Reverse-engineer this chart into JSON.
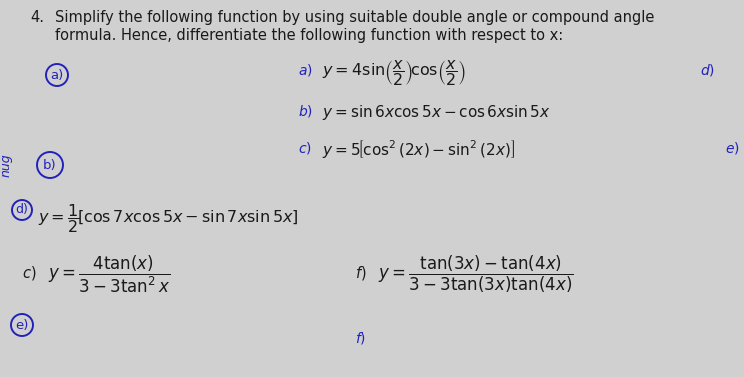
{
  "bg_color": "#d0d0d0",
  "text_color": "#1a1a1a",
  "blue_color": "#2222bb",
  "circle_color": "#2222bb",
  "title_number": "4.",
  "title_line1": "Simplify the following function by using suitable double angle or compound angle",
  "title_line2": "formula. Hence, differentiate the following function with respect to x:",
  "side_text": "nug",
  "eq_a": "$y = 4\\sin\\!\\left(\\dfrac{x}{2}\\right)\\!\\cos\\!\\left(\\dfrac{x}{2}\\right)$",
  "eq_b": "$y = \\sin 6x\\cos 5x - \\cos 6x\\sin 5x$",
  "eq_c": "$y = 5\\!\\left[\\cos^2(2x) - \\sin^2(2x)\\right]$",
  "eq_d": "$y = \\dfrac{1}{2}\\!\\left[\\cos 7x\\cos 5x - \\sin 7x\\sin 5x\\right]$",
  "eq_e_num": "$4\\tan(x)$",
  "eq_e_den": "$3 - 3\\tan^2 x$",
  "eq_f_num": "$\\tan(3x) - \\tan(4x)$",
  "eq_f_den": "$3 - 3\\tan(3x)\\tan(4x)$"
}
